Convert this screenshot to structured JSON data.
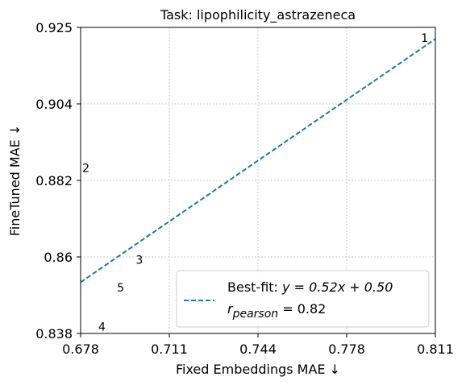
{
  "chart_data": {
    "type": "scatter",
    "title": "Task: lipophilicity_astrazeneca",
    "xlabel": "Fixed Embeddings MAE ↓",
    "ylabel": "FineTuned MAE ↓",
    "xlim": [
      0.678,
      0.811
    ],
    "ylim": [
      0.838,
      0.925
    ],
    "xticks": [
      "0.678",
      "0.711",
      "0.744",
      "0.778",
      "0.811"
    ],
    "yticks": [
      "0.838",
      "0.86",
      "0.882",
      "0.904",
      "0.925"
    ],
    "grid": true,
    "points": [
      {
        "label": "1",
        "x": 0.807,
        "y": 0.922
      },
      {
        "label": "2",
        "x": 0.68,
        "y": 0.885
      },
      {
        "label": "3",
        "x": 0.7,
        "y": 0.859
      },
      {
        "label": "4",
        "x": 0.686,
        "y": 0.84
      },
      {
        "label": "5",
        "x": 0.693,
        "y": 0.851
      }
    ],
    "fit_line": {
      "slope": 0.52,
      "intercept": 0.5,
      "style": "dashed",
      "color": "#1f77b4"
    },
    "legend": {
      "placement": "lower right",
      "line1": "Best-fit: y = 0.52x + 0.50",
      "line2": "r_pearson = 0.82"
    }
  }
}
